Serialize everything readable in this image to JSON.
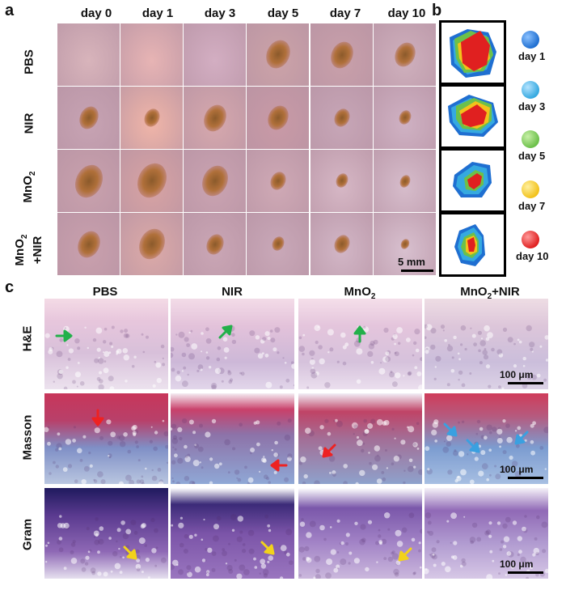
{
  "panels": {
    "a": "a",
    "b": "b",
    "c": "c"
  },
  "panel_a": {
    "days": [
      "day 0",
      "day 1",
      "day 3",
      "day 5",
      "day 7",
      "day 10"
    ],
    "groups": [
      {
        "label": "PBS"
      },
      {
        "label": "NIR"
      },
      {
        "label": "MnO",
        "sub": "2"
      },
      {
        "label": "MnO",
        "sub": "2",
        "line2": "+NIR"
      }
    ],
    "scale_label": "5 mm"
  },
  "panel_b": {
    "legend": [
      {
        "label": "day 1",
        "color": "#1f6fd1"
      },
      {
        "label": "day 3",
        "color": "#35a9e0"
      },
      {
        "label": "day 5",
        "color": "#6cc04a"
      },
      {
        "label": "day 7",
        "color": "#f2c21b"
      },
      {
        "label": "day 10",
        "color": "#e02020"
      }
    ]
  },
  "panel_c": {
    "columns": [
      {
        "label": "PBS"
      },
      {
        "label": "NIR"
      },
      {
        "label": "MnO",
        "sub": "2"
      },
      {
        "label": "MnO",
        "sub": "2",
        "tail": "+NIR"
      }
    ],
    "stains": [
      "H&E",
      "Masson",
      "Gram"
    ],
    "scale_label": "100 μm"
  }
}
